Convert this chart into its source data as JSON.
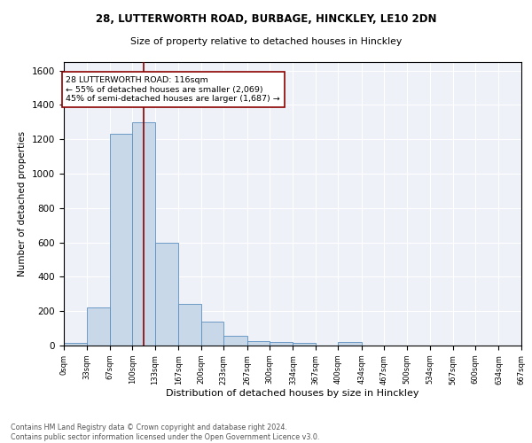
{
  "title1": "28, LUTTERWORTH ROAD, BURBAGE, HINCKLEY, LE10 2DN",
  "title2": "Size of property relative to detached houses in Hinckley",
  "xlabel": "Distribution of detached houses by size in Hinckley",
  "ylabel": "Number of detached properties",
  "footnote": "Contains HM Land Registry data © Crown copyright and database right 2024.\nContains public sector information licensed under the Open Government Licence v3.0.",
  "bin_edges": [
    0,
    33,
    67,
    100,
    133,
    167,
    200,
    233,
    267,
    300,
    334,
    367,
    400,
    434,
    467,
    500,
    534,
    567,
    600,
    634,
    667
  ],
  "bar_heights": [
    15,
    220,
    1230,
    1300,
    600,
    240,
    140,
    55,
    28,
    22,
    15,
    0,
    20,
    0,
    0,
    0,
    0,
    0,
    0,
    0
  ],
  "bar_color": "#c8d8e8",
  "bar_edge_color": "#5a8fc0",
  "property_size": 116,
  "vline_color": "#8b0000",
  "annotation_text": "28 LUTTERWORTH ROAD: 116sqm\n← 55% of detached houses are smaller (2,069)\n45% of semi-detached houses are larger (1,687) →",
  "annotation_box_color": "white",
  "annotation_box_edge_color": "#8b0000",
  "ylim": [
    0,
    1650
  ],
  "bg_color": "#eef2f8"
}
